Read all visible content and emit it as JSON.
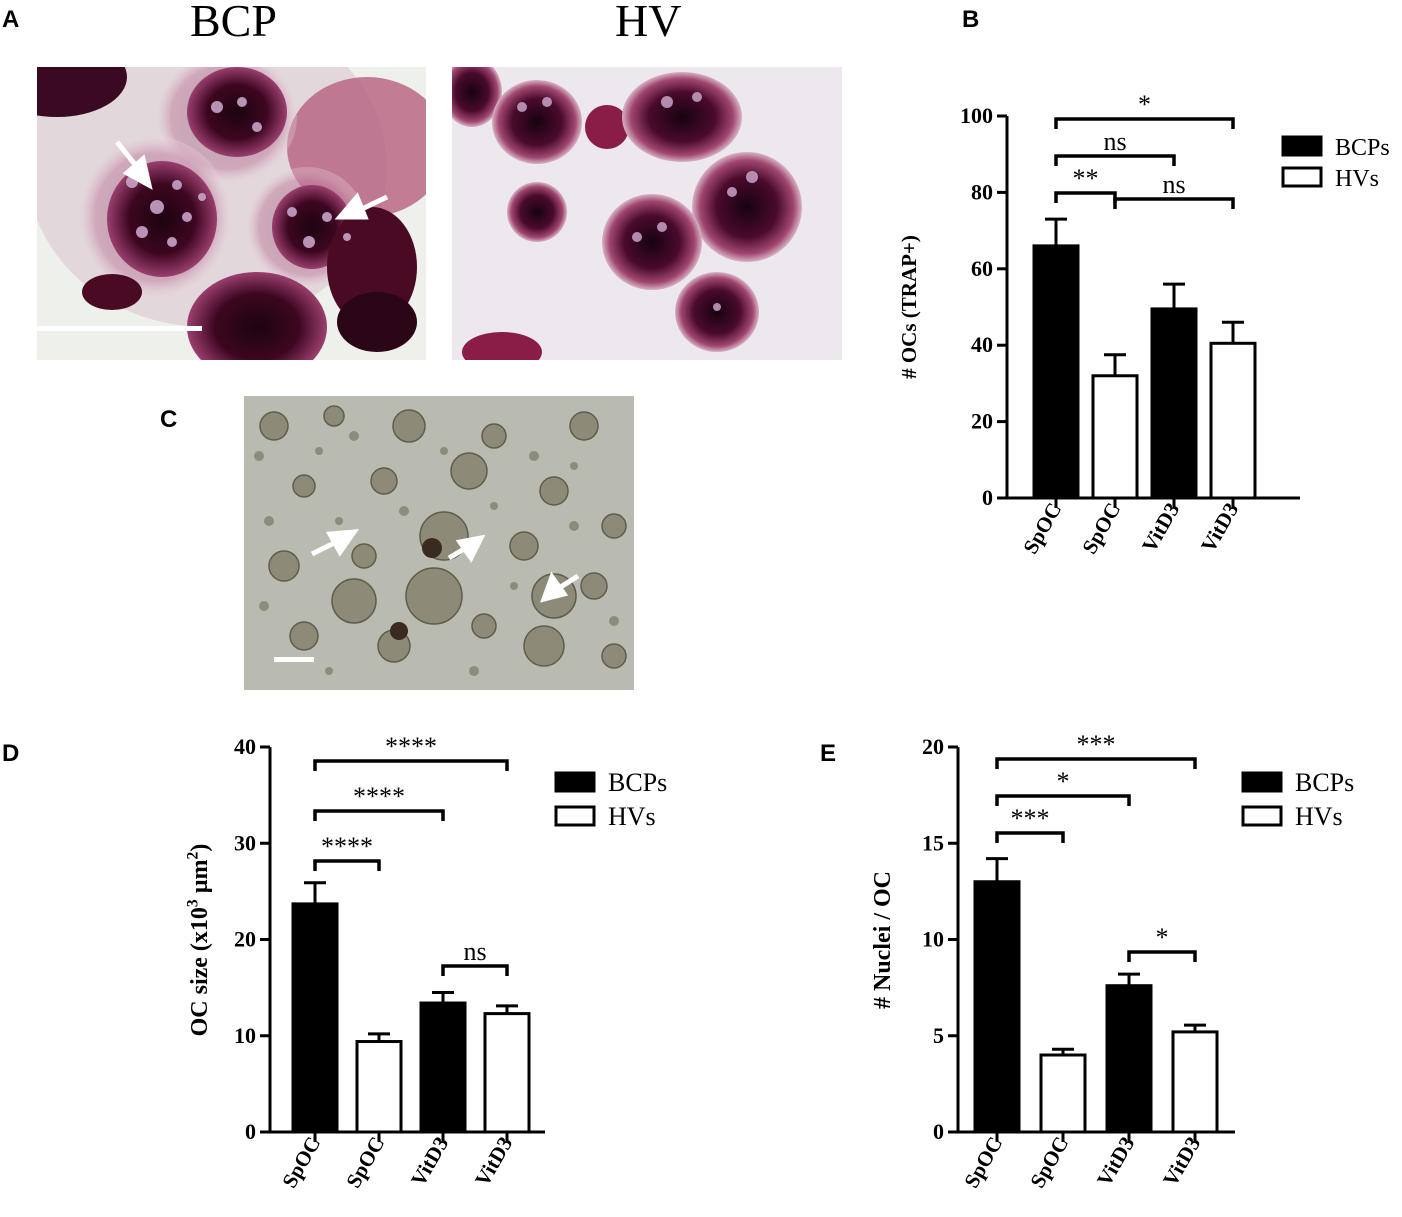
{
  "panels": {
    "A": {
      "letter": "A",
      "titles": [
        "BCP",
        "HV"
      ]
    },
    "B": {
      "letter": "B"
    },
    "C": {
      "letter": "C"
    },
    "D": {
      "letter": "D"
    },
    "E": {
      "letter": "E"
    }
  },
  "colors": {
    "bcp_bar": "#000000",
    "hv_bar": "#ffffff",
    "trap_stain": "#7a1a4a",
    "phase_contrast": "#9a9c8f"
  },
  "chart_data": [
    {
      "id": "B",
      "type": "bar",
      "categories": [
        "SpOC",
        "SpOC",
        "VitD3",
        "VitD3"
      ],
      "groups": [
        "BCPs",
        "HVs",
        "BCPs",
        "HVs"
      ],
      "values": [
        66,
        32,
        49.5,
        40.5
      ],
      "errors": [
        7,
        5.5,
        6.5,
        5.5
      ],
      "ylabel": "# OCs (TRAP+)",
      "ylim": [
        0,
        100
      ],
      "yticks": [
        "0",
        "20",
        "40",
        "60",
        "80",
        "100"
      ],
      "legend": [
        {
          "name": "BCPs",
          "fill": "#000000"
        },
        {
          "name": "HVs",
          "fill": "#ffffff"
        }
      ],
      "significance": [
        {
          "from": 0,
          "to": 1,
          "label": "**"
        },
        {
          "from": 0,
          "to": 2,
          "label": "ns"
        },
        {
          "from": 0,
          "to": 3,
          "label": "*"
        },
        {
          "from": 1,
          "to": 3,
          "label": "ns"
        }
      ]
    },
    {
      "id": "D",
      "type": "bar",
      "categories": [
        "SpOC",
        "SpOC",
        "VitD3",
        "VitD3"
      ],
      "groups": [
        "BCPs",
        "HVs",
        "BCPs",
        "HVs"
      ],
      "values": [
        23.7,
        9.4,
        13.4,
        12.3
      ],
      "errors": [
        2.2,
        0.8,
        1.1,
        0.8
      ],
      "ylabel": "OC size (x10",
      "ylabel_sup": "3",
      "ylabel_end": " µm",
      "ylabel_sup2": "2",
      "ylabel_close": ")",
      "ylim": [
        0,
        40
      ],
      "yticks": [
        "0",
        "10",
        "20",
        "30",
        "40"
      ],
      "legend": [
        {
          "name": "BCPs",
          "fill": "#000000"
        },
        {
          "name": "HVs",
          "fill": "#ffffff"
        }
      ],
      "significance": [
        {
          "from": 0,
          "to": 1,
          "label": "****"
        },
        {
          "from": 0,
          "to": 2,
          "label": "****"
        },
        {
          "from": 0,
          "to": 3,
          "label": "****"
        },
        {
          "from": 2,
          "to": 3,
          "label": "ns"
        }
      ]
    },
    {
      "id": "E",
      "type": "bar",
      "categories": [
        "SpOC",
        "SpOC",
        "VitD3",
        "VitD3"
      ],
      "groups": [
        "BCPs",
        "HVs",
        "BCPs",
        "HVs"
      ],
      "values": [
        13.0,
        4.0,
        7.6,
        5.2
      ],
      "errors": [
        1.2,
        0.3,
        0.6,
        0.35
      ],
      "ylabel": "# Nuclei / OC",
      "ylim": [
        0,
        20
      ],
      "yticks": [
        "0",
        "5",
        "10",
        "15",
        "20"
      ],
      "legend": [
        {
          "name": "BCPs",
          "fill": "#000000"
        },
        {
          "name": "HVs",
          "fill": "#ffffff"
        }
      ],
      "significance": [
        {
          "from": 0,
          "to": 1,
          "label": "***"
        },
        {
          "from": 0,
          "to": 2,
          "label": "*"
        },
        {
          "from": 0,
          "to": 3,
          "label": "***"
        },
        {
          "from": 2,
          "to": 3,
          "label": "*"
        }
      ]
    }
  ]
}
